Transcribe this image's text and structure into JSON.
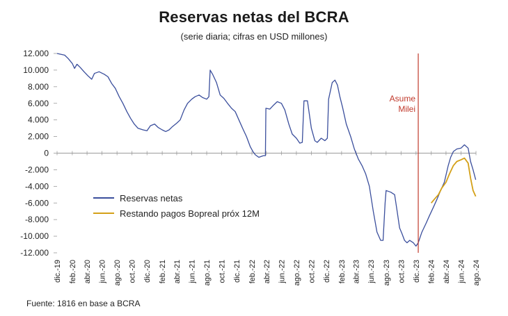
{
  "title": "Reservas netas del BCRA",
  "subtitle": "(serie diaria; cifras en USD millones)",
  "source": "Fuente: 1816 en base a BCRA",
  "chart_data": {
    "type": "line",
    "title": "Reservas netas del BCRA",
    "subtitle": "(serie diaria; cifras en USD millones)",
    "xlabel": "",
    "ylabel": "",
    "ylim": [
      -12000,
      12000
    ],
    "ytick_values": [
      12000,
      10000,
      8000,
      6000,
      4000,
      2000,
      0,
      -2000,
      -4000,
      -6000,
      -8000,
      -10000,
      -12000
    ],
    "ytick_labels": [
      "12.000",
      "10.000",
      "8.000",
      "6.000",
      "4.000",
      "2.000",
      "0",
      "-2.000",
      "-4.000",
      "-6.000",
      "-8.000",
      "-10.000",
      "-12.000"
    ],
    "xlim": [
      "2019-12-01",
      "2024-08-01"
    ],
    "xtick_values": [
      "2019-12-01",
      "2020-02-01",
      "2020-04-01",
      "2020-06-01",
      "2020-08-01",
      "2020-10-01",
      "2020-12-01",
      "2021-02-01",
      "2021-04-01",
      "2021-06-01",
      "2021-08-01",
      "2021-10-01",
      "2021-12-01",
      "2022-02-01",
      "2022-04-01",
      "2022-06-01",
      "2022-08-01",
      "2022-10-01",
      "2022-12-01",
      "2023-02-01",
      "2023-04-01",
      "2023-06-01",
      "2023-08-01",
      "2023-10-01",
      "2023-12-01",
      "2024-02-01",
      "2024-04-01",
      "2024-06-01",
      "2024-08-01"
    ],
    "xtick_labels": [
      "dic.-19",
      "feb.-20",
      "abr.-20",
      "jun.-20",
      "ago.-20",
      "oct.-20",
      "dic.-20",
      "feb.-21",
      "abr.-21",
      "jun.-21",
      "ago.-21",
      "oct.-21",
      "dic.-21",
      "feb.-22",
      "abr.-22",
      "jun.-22",
      "ago.-22",
      "oct.-22",
      "dic.-22",
      "feb.-23",
      "abr.-23",
      "jun.-23",
      "ago.-23",
      "oct.-23",
      "dic.-23",
      "feb.-24",
      "abr.-24",
      "jun.-24",
      "ago.-24"
    ],
    "legend_position": "left",
    "grid": false,
    "series": [
      {
        "name": "Reservas netas",
        "color": "#3a4e9c",
        "points": [
          [
            "2019-12-01",
            12000
          ],
          [
            "2020-01-01",
            11800
          ],
          [
            "2020-01-15",
            11400
          ],
          [
            "2020-02-01",
            10800
          ],
          [
            "2020-02-10",
            10200
          ],
          [
            "2020-02-20",
            10700
          ],
          [
            "2020-03-05",
            10300
          ],
          [
            "2020-03-20",
            9800
          ],
          [
            "2020-04-05",
            9300
          ],
          [
            "2020-04-20",
            8900
          ],
          [
            "2020-05-01",
            9600
          ],
          [
            "2020-05-20",
            9800
          ],
          [
            "2020-06-10",
            9500
          ],
          [
            "2020-06-25",
            9200
          ],
          [
            "2020-07-10",
            8400
          ],
          [
            "2020-07-25",
            7800
          ],
          [
            "2020-08-10",
            6800
          ],
          [
            "2020-08-25",
            6000
          ],
          [
            "2020-09-10",
            5000
          ],
          [
            "2020-09-25",
            4200
          ],
          [
            "2020-10-10",
            3500
          ],
          [
            "2020-10-25",
            3000
          ],
          [
            "2020-11-15",
            2800
          ],
          [
            "2020-12-01",
            2700
          ],
          [
            "2020-12-15",
            3300
          ],
          [
            "2021-01-01",
            3500
          ],
          [
            "2021-01-15",
            3100
          ],
          [
            "2021-02-01",
            2800
          ],
          [
            "2021-02-15",
            2600
          ],
          [
            "2021-03-01",
            2800
          ],
          [
            "2021-03-15",
            3200
          ],
          [
            "2021-04-01",
            3600
          ],
          [
            "2021-04-15",
            4000
          ],
          [
            "2021-05-01",
            5200
          ],
          [
            "2021-05-15",
            6000
          ],
          [
            "2021-06-01",
            6500
          ],
          [
            "2021-06-15",
            6800
          ],
          [
            "2021-07-01",
            7000
          ],
          [
            "2021-07-15",
            6700
          ],
          [
            "2021-08-01",
            6500
          ],
          [
            "2021-08-10",
            6800
          ],
          [
            "2021-08-15",
            10000
          ],
          [
            "2021-08-25",
            9500
          ],
          [
            "2021-09-10",
            8500
          ],
          [
            "2021-09-25",
            7000
          ],
          [
            "2021-10-10",
            6600
          ],
          [
            "2021-10-25",
            6000
          ],
          [
            "2021-11-10",
            5400
          ],
          [
            "2021-11-25",
            5000
          ],
          [
            "2021-12-10",
            4000
          ],
          [
            "2021-12-25",
            3000
          ],
          [
            "2022-01-10",
            2000
          ],
          [
            "2022-01-25",
            800
          ],
          [
            "2022-02-05",
            200
          ],
          [
            "2022-02-15",
            -200
          ],
          [
            "2022-03-01",
            -500
          ],
          [
            "2022-03-20",
            -300
          ],
          [
            "2022-03-28",
            -300
          ],
          [
            "2022-03-30",
            5400
          ],
          [
            "2022-04-15",
            5300
          ],
          [
            "2022-05-01",
            5800
          ],
          [
            "2022-05-15",
            6200
          ],
          [
            "2022-06-01",
            6000
          ],
          [
            "2022-06-15",
            5200
          ],
          [
            "2022-07-01",
            3500
          ],
          [
            "2022-07-15",
            2300
          ],
          [
            "2022-08-01",
            1800
          ],
          [
            "2022-08-15",
            1200
          ],
          [
            "2022-08-25",
            1300
          ],
          [
            "2022-09-01",
            6300
          ],
          [
            "2022-09-15",
            6300
          ],
          [
            "2022-10-01",
            3000
          ],
          [
            "2022-10-15",
            1500
          ],
          [
            "2022-10-25",
            1300
          ],
          [
            "2022-11-10",
            1800
          ],
          [
            "2022-11-25",
            1500
          ],
          [
            "2022-12-05",
            1800
          ],
          [
            "2022-12-10",
            6500
          ],
          [
            "2022-12-25",
            8500
          ],
          [
            "2023-01-05",
            8800
          ],
          [
            "2023-01-15",
            8200
          ],
          [
            "2023-01-25",
            6800
          ],
          [
            "2023-02-05",
            5500
          ],
          [
            "2023-02-20",
            3500
          ],
          [
            "2023-03-10",
            2000
          ],
          [
            "2023-03-25",
            500
          ],
          [
            "2023-04-10",
            -700
          ],
          [
            "2023-04-25",
            -1500
          ],
          [
            "2023-05-10",
            -2500
          ],
          [
            "2023-05-25",
            -4000
          ],
          [
            "2023-06-10",
            -7000
          ],
          [
            "2023-06-25",
            -9500
          ],
          [
            "2023-07-10",
            -10500
          ],
          [
            "2023-07-20",
            -10500
          ],
          [
            "2023-07-28",
            -6000
          ],
          [
            "2023-08-01",
            -4500
          ],
          [
            "2023-08-20",
            -4700
          ],
          [
            "2023-09-05",
            -5000
          ],
          [
            "2023-09-15",
            -7000
          ],
          [
            "2023-09-25",
            -9000
          ],
          [
            "2023-10-05",
            -9700
          ],
          [
            "2023-10-15",
            -10500
          ],
          [
            "2023-10-25",
            -10800
          ],
          [
            "2023-11-05",
            -10500
          ],
          [
            "2023-11-20",
            -10800
          ],
          [
            "2023-12-01",
            -11200
          ],
          [
            "2023-12-10",
            -10800
          ],
          [
            "2023-12-25",
            -9500
          ],
          [
            "2024-01-10",
            -8500
          ],
          [
            "2024-01-25",
            -7500
          ],
          [
            "2024-02-10",
            -6500
          ],
          [
            "2024-02-25",
            -5500
          ],
          [
            "2024-03-10",
            -4500
          ],
          [
            "2024-03-25",
            -3500
          ],
          [
            "2024-04-10",
            -1500
          ],
          [
            "2024-04-20",
            -500
          ],
          [
            "2024-05-01",
            200
          ],
          [
            "2024-05-15",
            500
          ],
          [
            "2024-06-01",
            600
          ],
          [
            "2024-06-15",
            1000
          ],
          [
            "2024-06-30",
            600
          ],
          [
            "2024-07-10",
            -1000
          ],
          [
            "2024-07-20",
            -2000
          ],
          [
            "2024-07-31",
            -3200
          ]
        ]
      },
      {
        "name": "Restando pagos Bopreal próx 12M",
        "color": "#d4a017",
        "points": [
          [
            "2024-02-01",
            -6000
          ],
          [
            "2024-02-15",
            -5500
          ],
          [
            "2024-03-01",
            -5000
          ],
          [
            "2024-03-15",
            -4200
          ],
          [
            "2024-04-01",
            -3500
          ],
          [
            "2024-04-15",
            -2500
          ],
          [
            "2024-05-01",
            -1500
          ],
          [
            "2024-05-15",
            -1000
          ],
          [
            "2024-06-01",
            -800
          ],
          [
            "2024-06-15",
            -600
          ],
          [
            "2024-06-30",
            -1200
          ],
          [
            "2024-07-10",
            -3000
          ],
          [
            "2024-07-20",
            -4500
          ],
          [
            "2024-07-31",
            -5200
          ]
        ]
      }
    ],
    "annotations": [
      {
        "type": "vline",
        "x": "2023-12-10",
        "color": "#c0392b",
        "label": [
          "Asume",
          "Milei"
        ]
      }
    ]
  }
}
